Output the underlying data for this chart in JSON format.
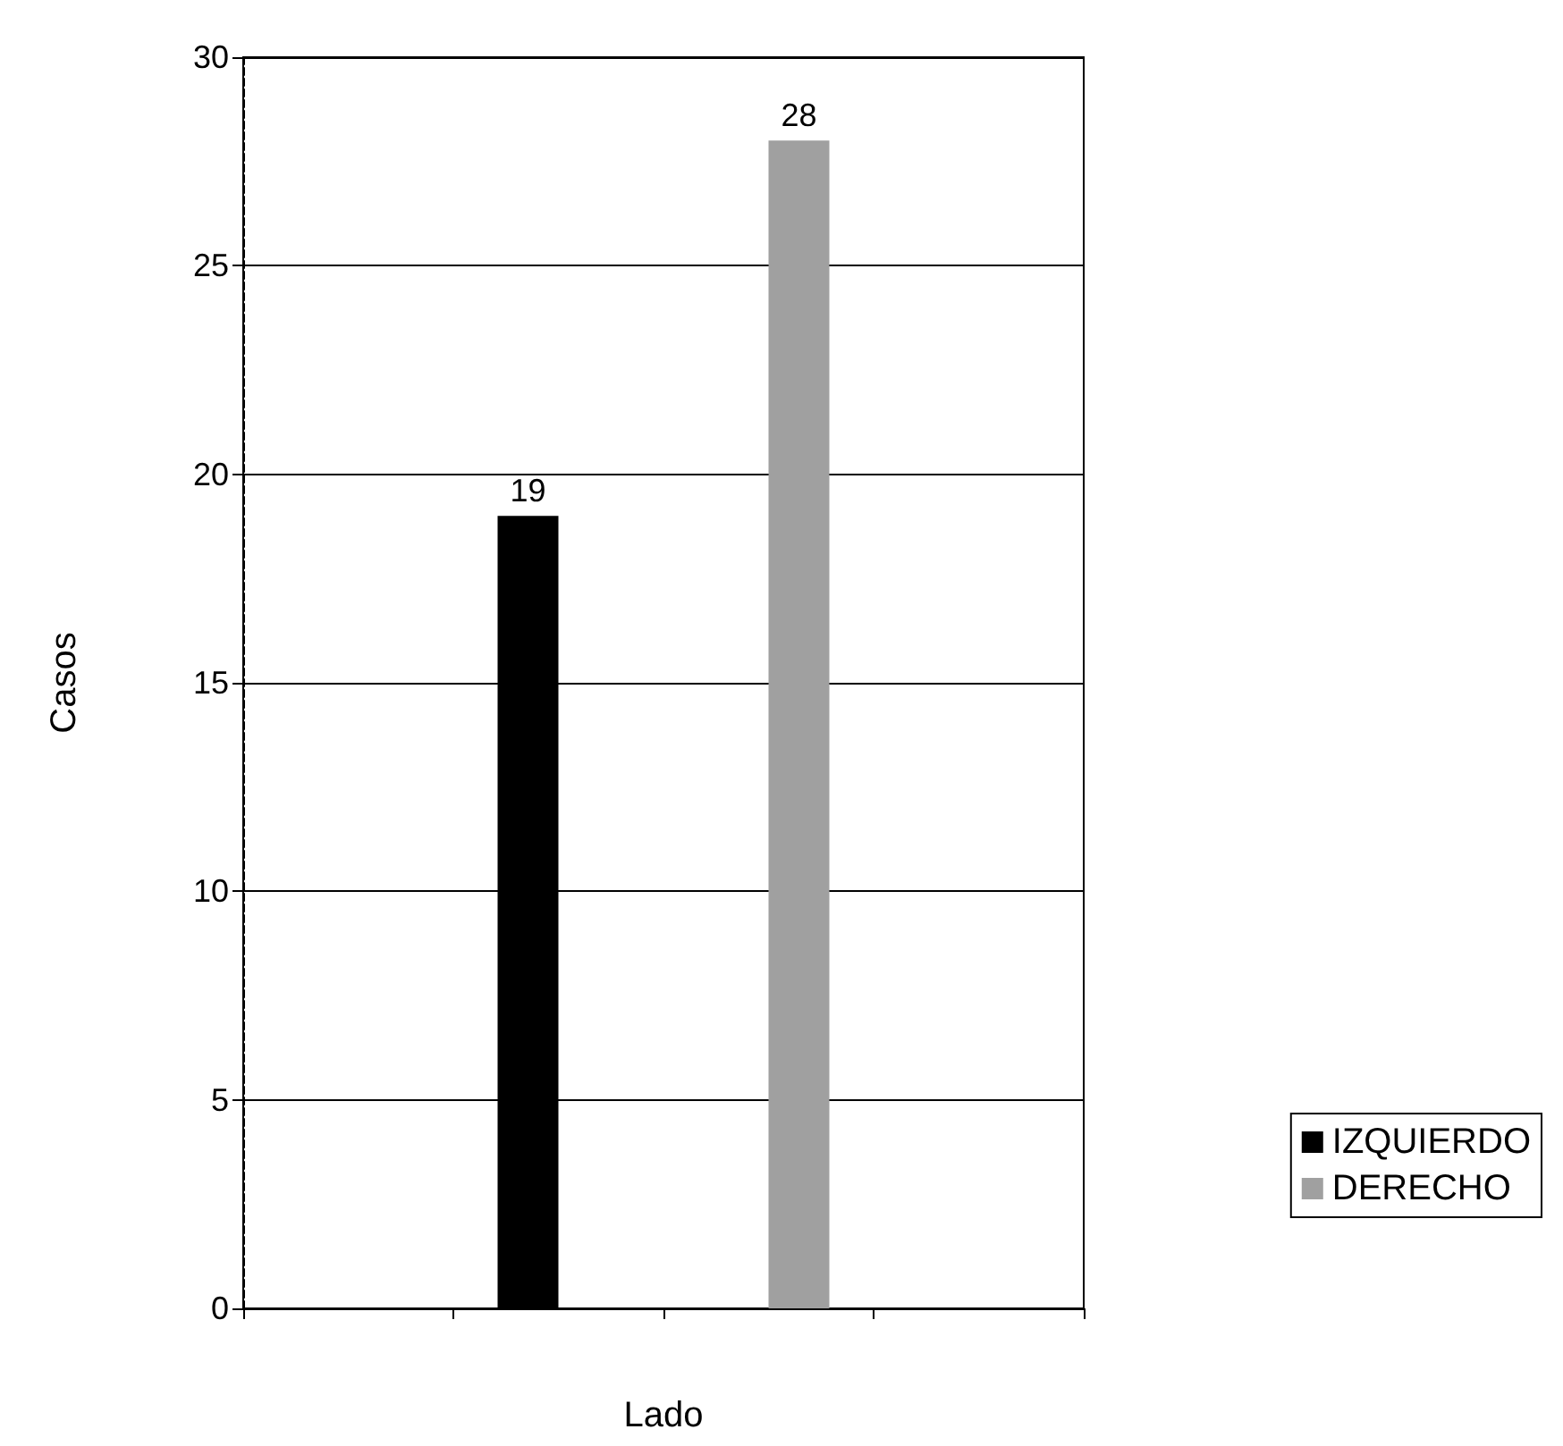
{
  "chart_data": {
    "type": "bar",
    "xlabel": "Lado",
    "ylabel": "Casos",
    "categories": [
      null,
      null,
      null,
      null
    ],
    "series": [
      {
        "name": "IZQUIERDO",
        "color": "#000000",
        "values": [
          null,
          19,
          null,
          null
        ]
      },
      {
        "name": "DERECHO",
        "color": "#a0a0a0",
        "values": [
          null,
          null,
          28,
          null
        ]
      }
    ],
    "ylim": [
      0,
      30
    ],
    "yticks": [
      0,
      5,
      10,
      15,
      20,
      25,
      30
    ],
    "grid": "y",
    "legend": "right",
    "data_labels": true
  }
}
